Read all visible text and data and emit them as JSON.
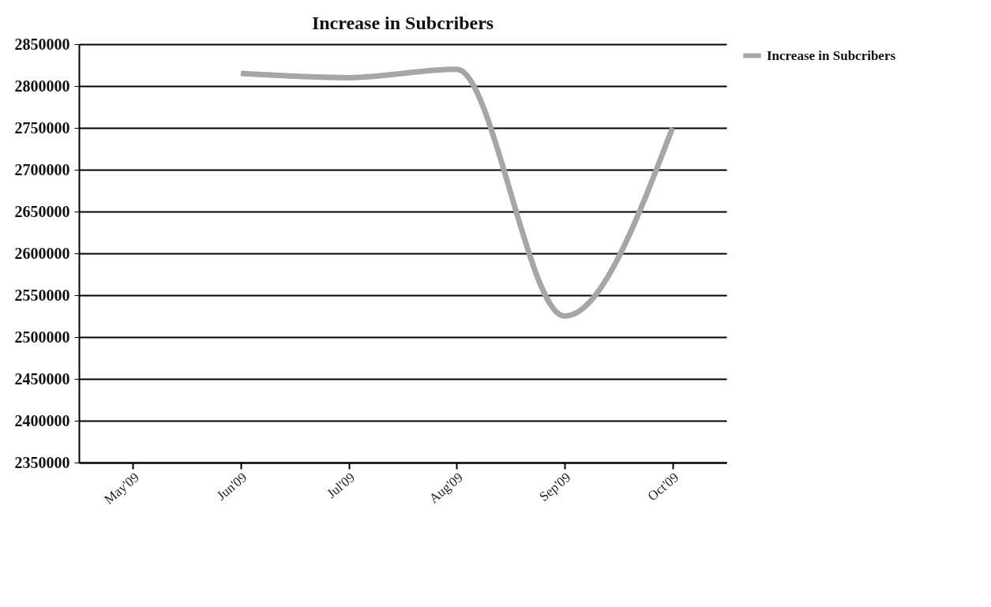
{
  "chart_data": {
    "type": "line",
    "title": "Increase in Subcribers",
    "categories": [
      "May'09",
      "Jun'09",
      "Jul'09",
      "Aug'09",
      "Sep'09",
      "Oct'09"
    ],
    "series": [
      {
        "name": "Increase in Subcribers",
        "color": "#a6a6a6",
        "values": [
          null,
          2815000,
          2810000,
          2820000,
          2525000,
          2750000
        ]
      }
    ],
    "ylim": [
      2350000,
      2850000
    ],
    "yticks": [
      2350000,
      2400000,
      2450000,
      2500000,
      2550000,
      2600000,
      2650000,
      2700000,
      2750000,
      2800000,
      2850000
    ],
    "grid": "y",
    "legend": "right",
    "marker": "none",
    "line_style": "solid"
  }
}
